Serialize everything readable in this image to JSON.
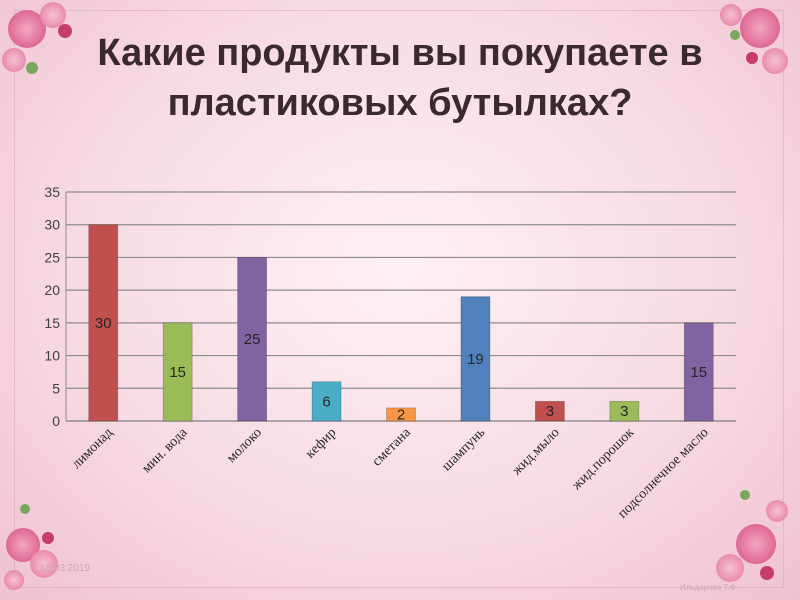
{
  "slide": {
    "title": "Какие продукты вы покупаете в пластиковых бутылках?",
    "date": "10.03.2019",
    "author": "Ильдарова Т.Ф."
  },
  "decor": {
    "icons": [
      "rose-bouquet-icon"
    ]
  },
  "chart_data": {
    "type": "bar",
    "title": "",
    "xlabel": "",
    "ylabel": "",
    "categories": [
      "лимонад",
      "мин. вода",
      "молоко",
      "кефир",
      "сметана",
      "шампунь",
      "жид.мыло",
      "жид.порошок",
      "подсолнечное масло"
    ],
    "values": [
      30,
      15,
      25,
      6,
      2,
      19,
      3,
      3,
      15
    ],
    "colors": [
      "#c0504d",
      "#9bbb59",
      "#8064a2",
      "#4bacc6",
      "#f79646",
      "#4f81bd",
      "#c0504d",
      "#9bbb59",
      "#8064a2"
    ],
    "ylim": [
      0,
      35
    ],
    "yticks": [
      0,
      5,
      10,
      15,
      20,
      25,
      30,
      35
    ],
    "grid": true,
    "legend": "none",
    "data_labels": true
  }
}
